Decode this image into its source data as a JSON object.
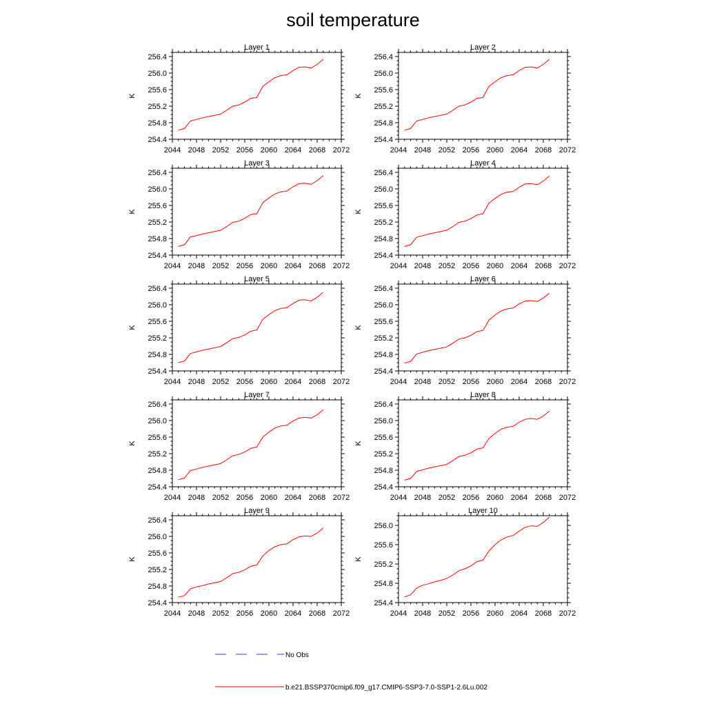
{
  "title": "soil temperature",
  "colors": {
    "model": "#ff0000",
    "obs": "#3b3bd1",
    "axis": "#000000"
  },
  "legend": {
    "obs_label": "No Obs",
    "model_label": "b.e21.BSSP370cmip6.f09_g17.CMIP6-SSP3-7.0-SSP1-2.6Lu.002"
  },
  "chart_data": [
    {
      "type": "line",
      "title": "Layer 1",
      "ylabel": "K",
      "xlim": [
        2044,
        2072
      ],
      "ylim": [
        254.4,
        256.5
      ],
      "xticks": [
        "2044",
        "2048",
        "2052",
        "2056",
        "2060",
        "2064",
        "2068",
        "2072"
      ],
      "yticks": [
        "254.4",
        "254.8",
        "255.2",
        "255.6",
        "256.0",
        "256.4"
      ],
      "x": [
        2045,
        2046,
        2047,
        2048,
        2049,
        2050,
        2051,
        2052,
        2053,
        2054,
        2055,
        2056,
        2057,
        2058,
        2059,
        2060,
        2061,
        2062,
        2063,
        2064,
        2065,
        2066,
        2067,
        2068,
        2069
      ],
      "series": [
        {
          "values": [
            254.62,
            254.66,
            254.84,
            254.88,
            254.92,
            254.95,
            254.98,
            255.01,
            255.1,
            255.2,
            255.23,
            255.3,
            255.39,
            255.41,
            255.68,
            255.79,
            255.89,
            255.94,
            255.96,
            256.06,
            256.14,
            256.15,
            256.12,
            256.21,
            256.33
          ]
        }
      ]
    },
    {
      "type": "line",
      "title": "Layer 2",
      "ylabel": "K",
      "xlim": [
        2044,
        2072
      ],
      "ylim": [
        254.4,
        256.5
      ],
      "xticks": [
        "2044",
        "2048",
        "2052",
        "2056",
        "2060",
        "2064",
        "2068",
        "2072"
      ],
      "yticks": [
        "254.4",
        "254.8",
        "255.2",
        "255.6",
        "256.0",
        "256.4"
      ],
      "x": [
        2045,
        2046,
        2047,
        2048,
        2049,
        2050,
        2051,
        2052,
        2053,
        2054,
        2055,
        2056,
        2057,
        2058,
        2059,
        2060,
        2061,
        2062,
        2063,
        2064,
        2065,
        2066,
        2067,
        2068,
        2069
      ],
      "series": [
        {
          "values": [
            254.62,
            254.66,
            254.84,
            254.88,
            254.92,
            254.95,
            254.98,
            255.01,
            255.1,
            255.2,
            255.23,
            255.3,
            255.39,
            255.41,
            255.68,
            255.79,
            255.89,
            255.94,
            255.96,
            256.06,
            256.14,
            256.15,
            256.12,
            256.21,
            256.33
          ]
        }
      ]
    },
    {
      "type": "line",
      "title": "Layer 3",
      "ylabel": "K",
      "xlim": [
        2044,
        2072
      ],
      "ylim": [
        254.4,
        256.5
      ],
      "xticks": [
        "2044",
        "2048",
        "2052",
        "2056",
        "2060",
        "2064",
        "2068",
        "2072"
      ],
      "yticks": [
        "254.4",
        "254.8",
        "255.2",
        "255.6",
        "256.0",
        "256.4"
      ],
      "x": [
        2045,
        2046,
        2047,
        2048,
        2049,
        2050,
        2051,
        2052,
        2053,
        2054,
        2055,
        2056,
        2057,
        2058,
        2059,
        2060,
        2061,
        2062,
        2063,
        2064,
        2065,
        2066,
        2067,
        2068,
        2069
      ],
      "series": [
        {
          "values": [
            254.61,
            254.65,
            254.84,
            254.87,
            254.91,
            254.94,
            254.97,
            255.0,
            255.09,
            255.19,
            255.22,
            255.29,
            255.38,
            255.4,
            255.67,
            255.78,
            255.88,
            255.93,
            255.95,
            256.05,
            256.13,
            256.14,
            256.11,
            256.2,
            256.32
          ]
        }
      ]
    },
    {
      "type": "line",
      "title": "Layer 4",
      "ylabel": "K",
      "xlim": [
        2044,
        2072
      ],
      "ylim": [
        254.4,
        256.5
      ],
      "xticks": [
        "2044",
        "2048",
        "2052",
        "2056",
        "2060",
        "2064",
        "2068",
        "2072"
      ],
      "yticks": [
        "254.4",
        "254.8",
        "255.2",
        "255.6",
        "256.0",
        "256.4"
      ],
      "x": [
        2045,
        2046,
        2047,
        2048,
        2049,
        2050,
        2051,
        2052,
        2053,
        2054,
        2055,
        2056,
        2057,
        2058,
        2059,
        2060,
        2061,
        2062,
        2063,
        2064,
        2065,
        2066,
        2067,
        2068,
        2069
      ],
      "series": [
        {
          "values": [
            254.61,
            254.65,
            254.83,
            254.87,
            254.91,
            254.94,
            254.97,
            255.0,
            255.09,
            255.19,
            255.22,
            255.28,
            255.37,
            255.4,
            255.66,
            255.77,
            255.87,
            255.92,
            255.94,
            256.04,
            256.12,
            256.13,
            256.1,
            256.19,
            256.31
          ]
        }
      ]
    },
    {
      "type": "line",
      "title": "Layer 5",
      "ylabel": "K",
      "xlim": [
        2044,
        2072
      ],
      "ylim": [
        254.4,
        256.5
      ],
      "xticks": [
        "2044",
        "2048",
        "2052",
        "2056",
        "2060",
        "2064",
        "2068",
        "2072"
      ],
      "yticks": [
        "254.4",
        "254.8",
        "255.2",
        "255.6",
        "256.0",
        "256.4"
      ],
      "x": [
        2045,
        2046,
        2047,
        2048,
        2049,
        2050,
        2051,
        2052,
        2053,
        2054,
        2055,
        2056,
        2057,
        2058,
        2059,
        2060,
        2061,
        2062,
        2063,
        2064,
        2065,
        2066,
        2067,
        2068,
        2069
      ],
      "series": [
        {
          "values": [
            254.6,
            254.64,
            254.82,
            254.86,
            254.9,
            254.93,
            254.96,
            254.99,
            255.08,
            255.18,
            255.21,
            255.27,
            255.36,
            255.39,
            255.65,
            255.76,
            255.86,
            255.91,
            255.93,
            256.03,
            256.11,
            256.12,
            256.09,
            256.18,
            256.3
          ]
        }
      ]
    },
    {
      "type": "line",
      "title": "Layer 6",
      "ylabel": "K",
      "xlim": [
        2044,
        2072
      ],
      "ylim": [
        254.4,
        256.5
      ],
      "xticks": [
        "2044",
        "2048",
        "2052",
        "2056",
        "2060",
        "2064",
        "2068",
        "2072"
      ],
      "yticks": [
        "254.4",
        "254.8",
        "255.2",
        "255.6",
        "256.0",
        "256.4"
      ],
      "x": [
        2045,
        2046,
        2047,
        2048,
        2049,
        2050,
        2051,
        2052,
        2053,
        2054,
        2055,
        2056,
        2057,
        2058,
        2059,
        2060,
        2061,
        2062,
        2063,
        2064,
        2065,
        2066,
        2067,
        2068,
        2069
      ],
      "series": [
        {
          "values": [
            254.59,
            254.63,
            254.81,
            254.85,
            254.89,
            254.92,
            254.95,
            254.98,
            255.07,
            255.17,
            255.2,
            255.26,
            255.35,
            255.38,
            255.63,
            255.75,
            255.85,
            255.9,
            255.92,
            256.02,
            256.09,
            256.1,
            256.08,
            256.16,
            256.28
          ]
        }
      ]
    },
    {
      "type": "line",
      "title": "Layer 7",
      "ylabel": "K",
      "xlim": [
        2044,
        2072
      ],
      "ylim": [
        254.4,
        256.5
      ],
      "xticks": [
        "2044",
        "2048",
        "2052",
        "2056",
        "2060",
        "2064",
        "2068",
        "2072"
      ],
      "yticks": [
        "254.4",
        "254.8",
        "255.2",
        "255.6",
        "256.0",
        "256.4"
      ],
      "x": [
        2045,
        2046,
        2047,
        2048,
        2049,
        2050,
        2051,
        2052,
        2053,
        2054,
        2055,
        2056,
        2057,
        2058,
        2059,
        2060,
        2061,
        2062,
        2063,
        2064,
        2065,
        2066,
        2067,
        2068,
        2069
      ],
      "series": [
        {
          "values": [
            254.57,
            254.61,
            254.79,
            254.83,
            254.87,
            254.9,
            254.93,
            254.96,
            255.05,
            255.15,
            255.18,
            255.24,
            255.33,
            255.36,
            255.6,
            255.72,
            255.82,
            255.87,
            255.89,
            255.99,
            256.06,
            256.08,
            256.06,
            256.14,
            256.26
          ]
        }
      ]
    },
    {
      "type": "line",
      "title": "Layer 8",
      "ylabel": "K",
      "xlim": [
        2044,
        2072
      ],
      "ylim": [
        254.4,
        256.5
      ],
      "xticks": [
        "2044",
        "2048",
        "2052",
        "2056",
        "2060",
        "2064",
        "2068",
        "2072"
      ],
      "yticks": [
        "254.4",
        "254.8",
        "255.2",
        "255.6",
        "256.0",
        "256.4"
      ],
      "x": [
        2045,
        2046,
        2047,
        2048,
        2049,
        2050,
        2051,
        2052,
        2053,
        2054,
        2055,
        2056,
        2057,
        2058,
        2059,
        2060,
        2061,
        2062,
        2063,
        2064,
        2065,
        2066,
        2067,
        2068,
        2069
      ],
      "series": [
        {
          "values": [
            254.56,
            254.6,
            254.77,
            254.81,
            254.85,
            254.88,
            254.91,
            254.94,
            255.03,
            255.13,
            255.16,
            255.22,
            255.31,
            255.34,
            255.57,
            255.69,
            255.79,
            255.84,
            255.86,
            255.96,
            256.03,
            256.05,
            256.03,
            256.11,
            256.23
          ]
        }
      ]
    },
    {
      "type": "line",
      "title": "Layer 9",
      "ylabel": "K",
      "xlim": [
        2044,
        2072
      ],
      "ylim": [
        254.4,
        256.5
      ],
      "xticks": [
        "2044",
        "2048",
        "2052",
        "2056",
        "2060",
        "2064",
        "2068",
        "2072"
      ],
      "yticks": [
        "254.4",
        "254.8",
        "255.2",
        "255.6",
        "256.0",
        "256.4"
      ],
      "x": [
        2045,
        2046,
        2047,
        2048,
        2049,
        2050,
        2051,
        2052,
        2053,
        2054,
        2055,
        2056,
        2057,
        2058,
        2059,
        2060,
        2061,
        2062,
        2063,
        2064,
        2065,
        2066,
        2067,
        2068,
        2069
      ],
      "series": [
        {
          "values": [
            254.53,
            254.57,
            254.73,
            254.78,
            254.81,
            254.85,
            254.88,
            254.91,
            255.0,
            255.1,
            255.13,
            255.19,
            255.28,
            255.31,
            255.53,
            255.66,
            255.75,
            255.8,
            255.82,
            255.92,
            255.99,
            256.01,
            256.0,
            256.08,
            256.2
          ]
        }
      ]
    },
    {
      "type": "line",
      "title": "Layer 10",
      "ylabel": "K",
      "xlim": [
        2044,
        2072
      ],
      "ylim": [
        254.4,
        256.2
      ],
      "xticks": [
        "2044",
        "2048",
        "2052",
        "2056",
        "2060",
        "2064",
        "2068",
        "2072"
      ],
      "yticks": [
        "254.4",
        "254.8",
        "255.2",
        "255.6",
        "256.0"
      ],
      "x": [
        2045,
        2046,
        2047,
        2048,
        2049,
        2050,
        2051,
        2052,
        2053,
        2054,
        2055,
        2056,
        2057,
        2058,
        2059,
        2060,
        2061,
        2062,
        2063,
        2064,
        2065,
        2066,
        2067,
        2068,
        2069
      ],
      "series": [
        {
          "values": [
            254.52,
            254.56,
            254.7,
            254.76,
            254.79,
            254.83,
            254.86,
            254.9,
            254.97,
            255.06,
            255.1,
            255.16,
            255.25,
            255.28,
            255.47,
            255.6,
            255.7,
            255.76,
            255.79,
            255.88,
            255.96,
            255.99,
            255.98,
            256.06,
            256.17
          ]
        }
      ]
    }
  ]
}
